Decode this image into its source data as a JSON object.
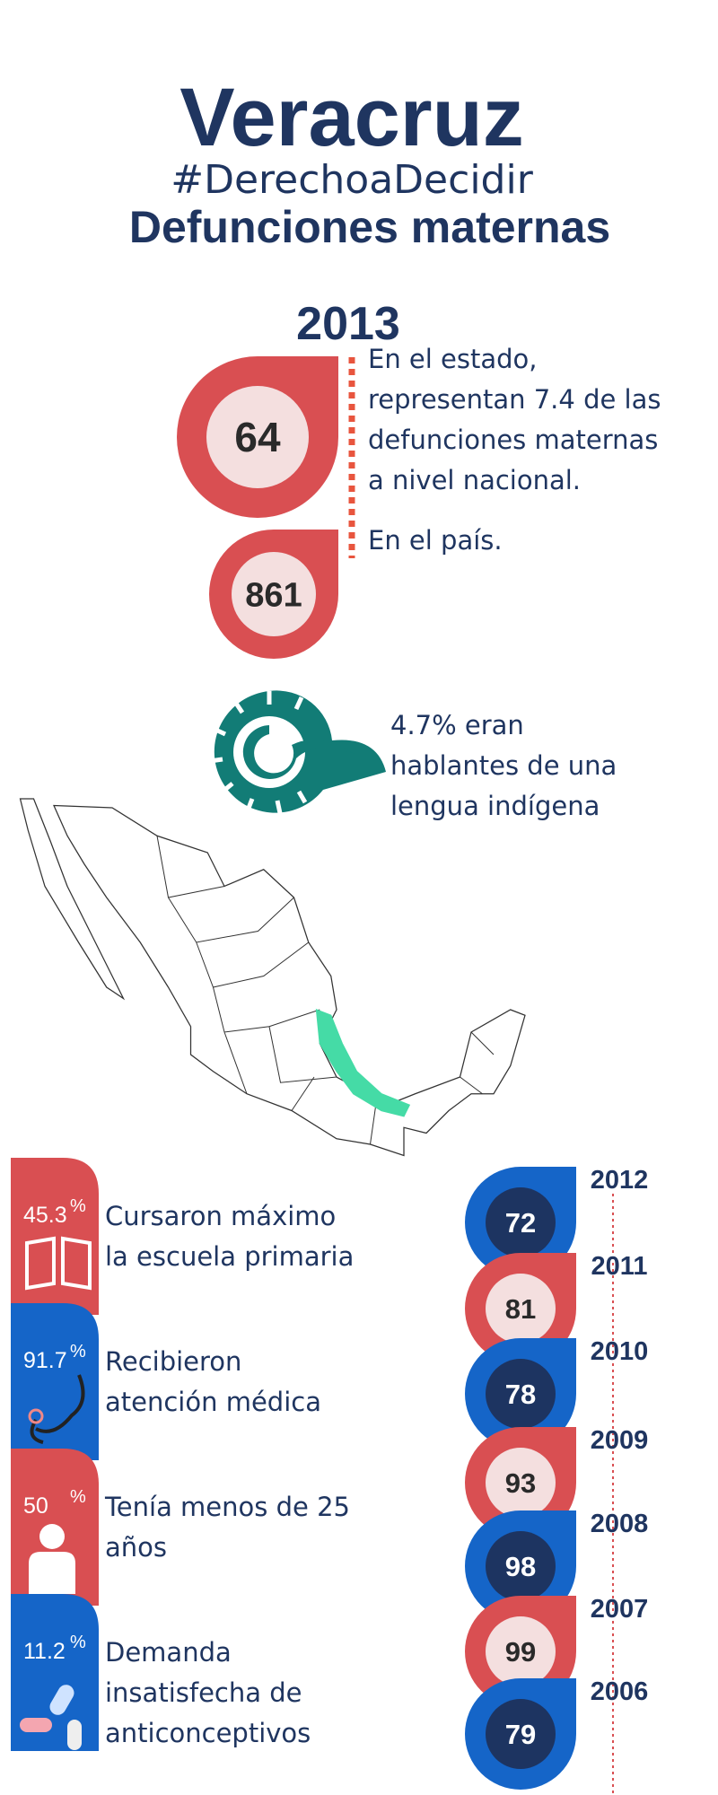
{
  "header": {
    "title": "Veracruz",
    "hashtag": "#DerechoaDecidir",
    "subtitle": "Defunciones maternas"
  },
  "year": "2013",
  "stats": [
    {
      "value": 64,
      "text_lines": [
        "En el estado,",
        "representan 7.4 de las",
        "defunciones maternas",
        "a nivel nacional."
      ]
    },
    {
      "value": 861,
      "text_lines": [
        "En el país."
      ]
    }
  ],
  "indigenous": {
    "text_lines": [
      "4.7% eran",
      "hablantes de una",
      "lengua indígena"
    ]
  },
  "characteristics": [
    {
      "value": "45.3",
      "unit": "%",
      "text_lines": [
        "Cursaron máximo",
        "la escuela primaria"
      ]
    },
    {
      "value": "91.7",
      "unit": "%",
      "text_lines": [
        "Recibieron",
        "atención médica"
      ]
    },
    {
      "value": "50",
      "unit": "%",
      "text_lines": [
        "Tenía menos de 25",
        "años"
      ]
    },
    {
      "value": "11.2",
      "unit": "%",
      "text_lines": [
        "Demanda",
        "insatisfecha de",
        "anticonceptivos"
      ]
    }
  ],
  "timeline": [
    {
      "year": "2012",
      "value": 72
    },
    {
      "year": "2011",
      "value": 81
    },
    {
      "year": "2010",
      "value": 78
    },
    {
      "year": "2009",
      "value": 93
    },
    {
      "year": "2008",
      "value": 98
    },
    {
      "year": "2007",
      "value": 99
    },
    {
      "year": "2006",
      "value": 79
    }
  ]
}
